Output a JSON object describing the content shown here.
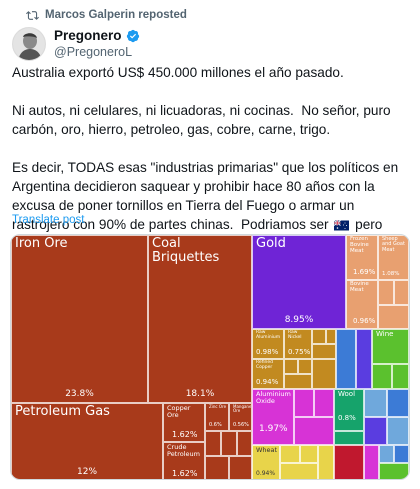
{
  "repost": {
    "text": "Marcos Galperin reposted",
    "icon": "repost-icon"
  },
  "author": {
    "name": "Pregonero",
    "handle": "@PregoneroL",
    "verified_color": "#1d9bf0"
  },
  "tweet": {
    "p1": "Australia exportó US$ 450.000 millones el año pasado.",
    "p2": "Ni autos, ni celulares, ni licuadoras, ni cocinas.  No señor, puro carbón, oro, hierro, petroleo, gas, cobre, carne, trigo.",
    "p3a": "Es decir, TODAS esas \"industrias primarias\" que los políticos en Argentina decidieron saquear y prohibir hace 80 años con la excusa de poner tornillos en Tierra del Fuego o armar un rastrojero con 90% de partes chinas.  Podriamos ser ",
    "p3b": " pero votamos ser "
  },
  "translate": {
    "label": "Translate post"
  },
  "treemap": {
    "iron_ore": {
      "label": "Iron Ore",
      "pct": "23.8%"
    },
    "coal": {
      "label": "Coal Briquettes",
      "pct": "18.1%"
    },
    "gold": {
      "label": "Gold",
      "pct": "8.95%"
    },
    "petroleum_gas": {
      "label": "Petroleum Gas",
      "pct": "12%"
    },
    "copper_ore": {
      "label": "Copper Ore",
      "pct": "1.62%"
    },
    "crude": {
      "label": "Crude Petroleum",
      "pct": "1.62%"
    },
    "zinc": {
      "label": "Zinc Ore",
      "pct": "0.6%"
    },
    "manganese": {
      "label": "Manganese Ore",
      "pct": "0.56%"
    },
    "frozen_beef": {
      "label": "Frozen Bovine Meat",
      "pct": "1.69%"
    },
    "sheep_goat": {
      "label": "Sheep and Goat Meat",
      "pct": "1.08%"
    },
    "bovine": {
      "label": "Bovine Meat",
      "pct": "0.96%"
    },
    "raw_aluminium": {
      "label": "Raw Aluminium",
      "pct": "0.98%"
    },
    "raw_nickel": {
      "label": "Raw Nickel",
      "pct": "0.75%"
    },
    "refined_copper": {
      "label": "Refined Copper",
      "pct": "0.94%"
    },
    "aluminium_oxide": {
      "label": "Aluminium Oxide",
      "pct": "1.97%"
    },
    "wool": {
      "label": "Wool",
      "pct": "0.8%"
    },
    "wine": {
      "label": "Wine",
      "pct": ""
    },
    "wheat": {
      "label": "Wheat",
      "pct": "0.94%"
    }
  },
  "colors": {
    "minerals": "#a83a1b",
    "metals": "#6f24d6",
    "animal": "#e8a070",
    "base_metals": "#c28a20",
    "foods": "#e8d44a",
    "vegetable": "#5bc12e",
    "textiles": "#16a36b",
    "chemicals": "#d733d6",
    "machines": "#3c7bd6",
    "transport": "#6fa8dc",
    "misc": "#5a3de0"
  }
}
